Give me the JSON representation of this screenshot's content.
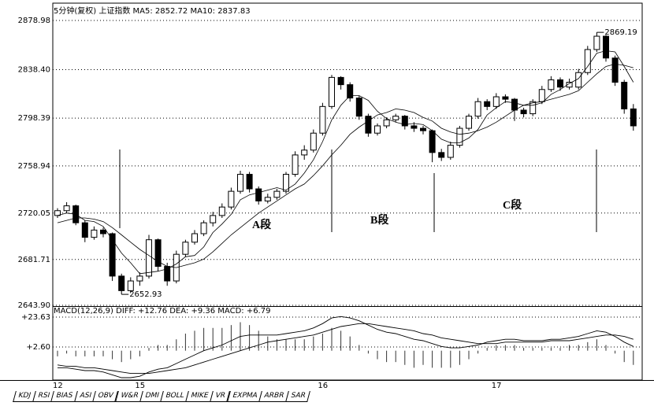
{
  "chart_data": [
    {
      "type": "candlestick",
      "title": "5分钟(复权)",
      "subtitle": "上证指数",
      "indicator_text": "MA5: 2852.72 MA10: 2837.83",
      "categories": [
        "12",
        null,
        null,
        null,
        null,
        null,
        null,
        null,
        null,
        "15",
        null,
        null,
        null,
        null,
        null,
        null,
        null,
        null,
        null,
        null,
        null,
        null,
        null,
        null,
        null,
        null,
        null,
        null,
        null,
        "16",
        null,
        null,
        null,
        null,
        null,
        null,
        null,
        null,
        null,
        null,
        null,
        null,
        null,
        null,
        null,
        null,
        null,
        null,
        "17",
        null,
        null,
        null,
        null,
        null,
        null,
        null,
        null,
        null,
        null,
        null,
        null,
        null,
        null,
        null
      ],
      "candles": [
        [
          2718,
          2724,
          2716,
          2722
        ],
        [
          2722,
          2729,
          2720,
          2726
        ],
        [
          2726,
          2727,
          2710,
          2712
        ],
        [
          2712,
          2714,
          2696,
          2700
        ],
        [
          2700,
          2709,
          2698,
          2706
        ],
        [
          2706,
          2708,
          2700,
          2703
        ],
        [
          2703,
          2704,
          2664,
          2668
        ],
        [
          2668,
          2670,
          2652.93,
          2656
        ],
        [
          2656,
          2667,
          2654,
          2664
        ],
        [
          2664,
          2671,
          2660,
          2668
        ],
        [
          2668,
          2702,
          2666,
          2698
        ],
        [
          2698,
          2699,
          2672,
          2676
        ],
        [
          2676,
          2679,
          2660,
          2664
        ],
        [
          2664,
          2689,
          2662,
          2686
        ],
        [
          2686,
          2698,
          2684,
          2696
        ],
        [
          2696,
          2706,
          2694,
          2703
        ],
        [
          2703,
          2714,
          2701,
          2712
        ],
        [
          2712,
          2721,
          2709,
          2718
        ],
        [
          2718,
          2728,
          2716,
          2725
        ],
        [
          2725,
          2741,
          2723,
          2738
        ],
        [
          2738,
          2755,
          2736,
          2752
        ],
        [
          2752,
          2754,
          2737,
          2740
        ],
        [
          2740,
          2742,
          2727,
          2730
        ],
        [
          2730,
          2736,
          2728,
          2733
        ],
        [
          2733,
          2740,
          2731,
          2738
        ],
        [
          2738,
          2754,
          2736,
          2752
        ],
        [
          2752,
          2771,
          2750,
          2768
        ],
        [
          2768,
          2776,
          2764,
          2772
        ],
        [
          2772,
          2789,
          2770,
          2786
        ],
        [
          2786,
          2811,
          2784,
          2808
        ],
        [
          2808,
          2834,
          2806,
          2832
        ],
        [
          2832,
          2833,
          2822,
          2826
        ],
        [
          2826,
          2828,
          2812,
          2815
        ],
        [
          2815,
          2817,
          2797,
          2800
        ],
        [
          2800,
          2802,
          2783,
          2786
        ],
        [
          2786,
          2794,
          2784,
          2792
        ],
        [
          2792,
          2799,
          2790,
          2797
        ],
        [
          2797,
          2802,
          2795,
          2800
        ],
        [
          2800,
          2801,
          2789,
          2792
        ],
        [
          2792,
          2795,
          2787,
          2790
        ],
        [
          2790,
          2792,
          2785,
          2788
        ],
        [
          2788,
          2789,
          2762,
          2770
        ],
        [
          2770,
          2773,
          2763,
          2766
        ],
        [
          2766,
          2779,
          2764,
          2776
        ],
        [
          2776,
          2792,
          2774,
          2790
        ],
        [
          2790,
          2802,
          2788,
          2800
        ],
        [
          2800,
          2815,
          2798,
          2812
        ],
        [
          2812,
          2814,
          2805,
          2808
        ],
        [
          2808,
          2819,
          2806,
          2816
        ],
        [
          2816,
          2818,
          2811,
          2814
        ],
        [
          2814,
          2815,
          2796,
          2805
        ],
        [
          2805,
          2807,
          2799,
          2802
        ],
        [
          2802,
          2814,
          2800,
          2812
        ],
        [
          2812,
          2825,
          2810,
          2822
        ],
        [
          2822,
          2833,
          2820,
          2830
        ],
        [
          2830,
          2832,
          2821,
          2824
        ],
        [
          2824,
          2831,
          2822,
          2828
        ],
        [
          2824,
          2839,
          2822,
          2836
        ],
        [
          2836,
          2858,
          2834,
          2855
        ],
        [
          2855,
          2869.19,
          2853,
          2866
        ],
        [
          2866,
          2867,
          2845,
          2848
        ],
        [
          2848,
          2850,
          2825,
          2828
        ],
        [
          2828,
          2830,
          2802,
          2806
        ],
        [
          2806,
          2810,
          2788,
          2792
        ]
      ],
      "series": [
        {
          "name": "MA5",
          "color": "#000000",
          "values": [
            2718,
            2720,
            2719,
            2714,
            2713,
            2709,
            2698,
            2687,
            2679,
            2670,
            2671,
            2672,
            2674,
            2678,
            2684,
            2685,
            2692,
            2704,
            2711,
            2719,
            2731,
            2735,
            2737,
            2739,
            2741,
            2739,
            2744,
            2753,
            2764,
            2779,
            2797,
            2809,
            2817,
            2817,
            2813,
            2804,
            2798,
            2795,
            2793,
            2794,
            2793,
            2788,
            2781,
            2778,
            2778,
            2782,
            2789,
            2801,
            2807,
            2812,
            2811,
            2809,
            2809,
            2811,
            2818,
            2822,
            2827,
            2831,
            2841,
            2852,
            2854,
            2853,
            2841,
            2828
          ]
        },
        {
          "name": "MA10",
          "color": "#000000",
          "values": [
            2712,
            2714,
            2716,
            2716,
            2715,
            2713,
            2708,
            2702,
            2696,
            2690,
            2685,
            2680,
            2676,
            2675,
            2677,
            2679,
            2682,
            2688,
            2695,
            2702,
            2708,
            2714,
            2720,
            2725,
            2730,
            2735,
            2740,
            2744,
            2751,
            2759,
            2768,
            2776,
            2785,
            2791,
            2796,
            2801,
            2803,
            2806,
            2805,
            2803,
            2799,
            2796,
            2790,
            2787,
            2785,
            2786,
            2788,
            2791,
            2795,
            2800,
            2805,
            2809,
            2811,
            2812,
            2814,
            2816,
            2818,
            2821,
            2828,
            2835,
            2841,
            2843,
            2842,
            2840
          ]
        }
      ],
      "ylim": [
        2643.9,
        2889.4
      ],
      "yticks": [
        {
          "value": 2643.9,
          "label": "2643.90"
        },
        2681.71,
        2720.05,
        2758.94,
        2798.39,
        {
          "value": 2838.4,
          "label": "2838.40"
        },
        2878.98
      ],
      "grid": true,
      "annotations": [
        "A段",
        "B段",
        "C段"
      ]
    },
    {
      "type": "macd",
      "title": "MACD(12,26,9) DIFF: +12.76 DEA: +9.36 MACD: +6.79",
      "series": [
        {
          "name": "DIFF",
          "color": "#000000",
          "values": [
            -12,
            -12,
            -13,
            -14,
            -14,
            -15,
            -17,
            -19,
            -19,
            -18,
            -15,
            -13,
            -12,
            -9,
            -6,
            -3,
            0,
            2,
            4,
            7,
            10,
            11,
            11,
            11,
            11,
            12,
            13,
            14,
            16,
            19,
            23,
            24,
            23,
            21,
            18,
            15,
            13,
            12,
            10,
            8,
            7,
            5,
            3,
            2,
            2,
            3,
            4,
            6,
            7,
            8,
            8,
            7,
            7,
            7,
            8,
            8,
            9,
            10,
            12,
            14,
            13,
            10,
            6,
            3
          ]
        },
        {
          "name": "DEA",
          "color": "#000000",
          "values": [
            -10,
            -11,
            -11,
            -12,
            -12,
            -13,
            -14,
            -15,
            -16,
            -16,
            -16,
            -15,
            -14,
            -13,
            -12,
            -10,
            -8,
            -6,
            -4,
            -2,
            0,
            2,
            4,
            6,
            7,
            8,
            9,
            10,
            11,
            13,
            15,
            17,
            18,
            19,
            19,
            18,
            17,
            16,
            15,
            14,
            12,
            11,
            9,
            8,
            7,
            6,
            5,
            5,
            5,
            6,
            6,
            6,
            6,
            6,
            7,
            7,
            7,
            8,
            9,
            10,
            11,
            11,
            10,
            8
          ]
        }
      ],
      "histogram": [
        -4,
        -2,
        -4,
        -4,
        -4,
        -4,
        -6,
        -8,
        -6,
        -4,
        2,
        4,
        4,
        8,
        12,
        14,
        16,
        16,
        16,
        18,
        20,
        18,
        14,
        10,
        8,
        8,
        8,
        8,
        10,
        12,
        16,
        14,
        10,
        4,
        -2,
        -6,
        -8,
        -8,
        -10,
        -12,
        -10,
        -12,
        -12,
        -12,
        -10,
        -6,
        -2,
        2,
        4,
        4,
        4,
        2,
        2,
        2,
        2,
        2,
        4,
        4,
        6,
        8,
        4,
        -2,
        -8,
        -10
      ],
      "ylim": [
        -20.64,
        29.7
      ],
      "yticks": [
        {
          "value": 2.6,
          "label": "+2.60"
        },
        {
          "value": 23.63,
          "label": "+23.63"
        }
      ],
      "grid": true
    }
  ],
  "tabs": [
    "KDJ",
    "RSI",
    "BIAS",
    "ASI",
    "OBV",
    "W&R",
    "DMI",
    "BOLL",
    "MIKE",
    "VR",
    "EXPMA",
    "ARBR",
    "SAR"
  ]
}
